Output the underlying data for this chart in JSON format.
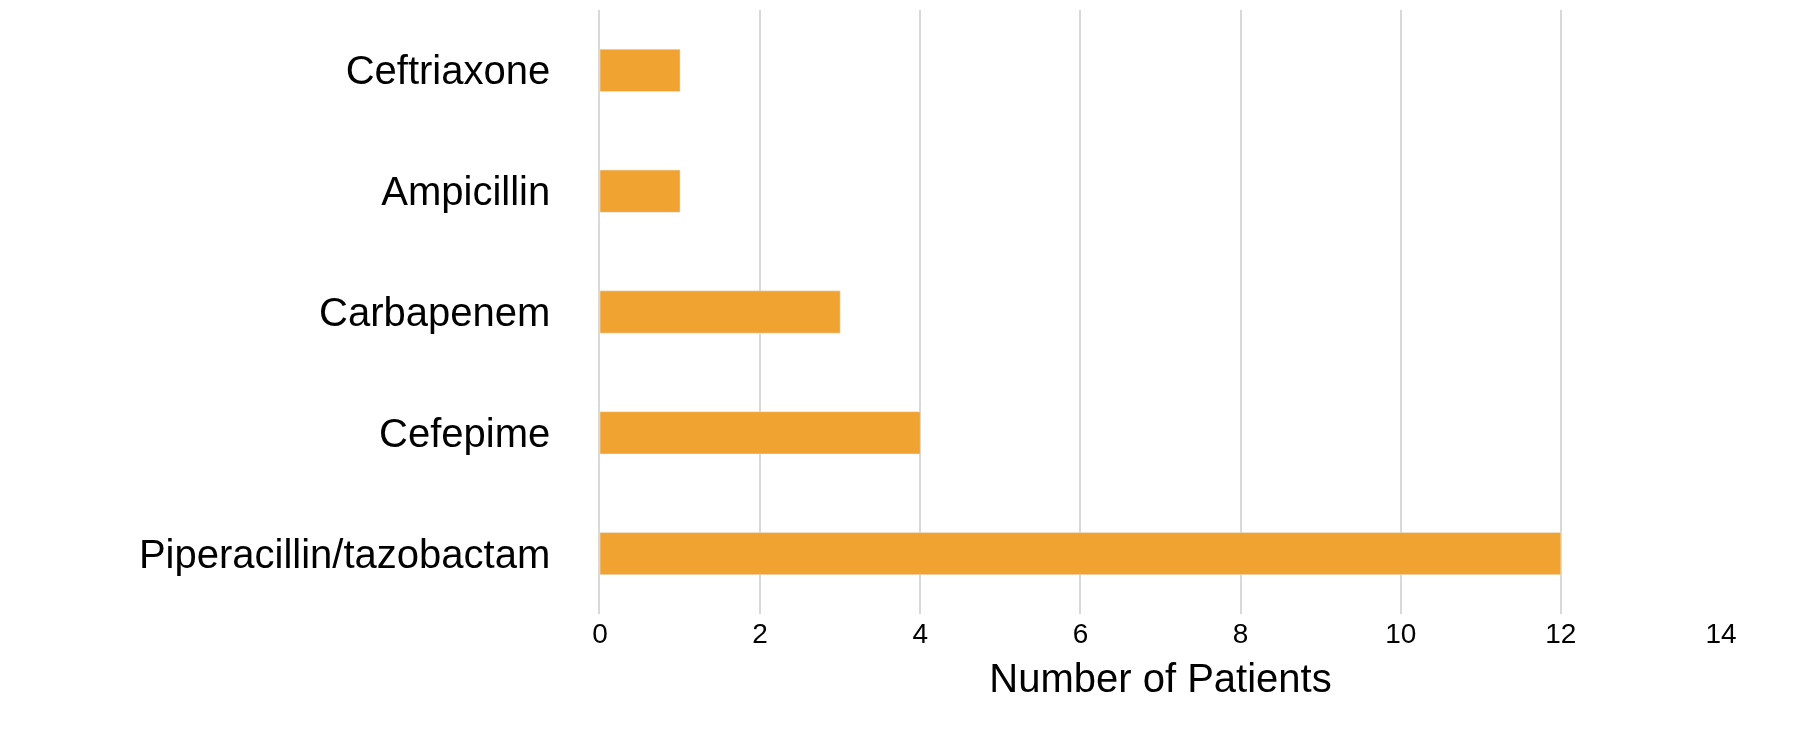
{
  "chart_data": {
    "type": "bar",
    "orientation": "horizontal",
    "xlabel": "Number of Patients",
    "categories": [
      "Ceftriaxone",
      "Ampicillin",
      "Carbapenem",
      "Cefepime",
      "Piperacillin/tazobactam"
    ],
    "values": [
      1,
      1,
      3,
      4,
      12
    ],
    "color": "#f0a330",
    "xlim": [
      0,
      14
    ],
    "xticks": [
      0,
      2,
      4,
      6,
      8,
      10,
      12,
      14
    ],
    "grid": "x",
    "legend": false
  }
}
